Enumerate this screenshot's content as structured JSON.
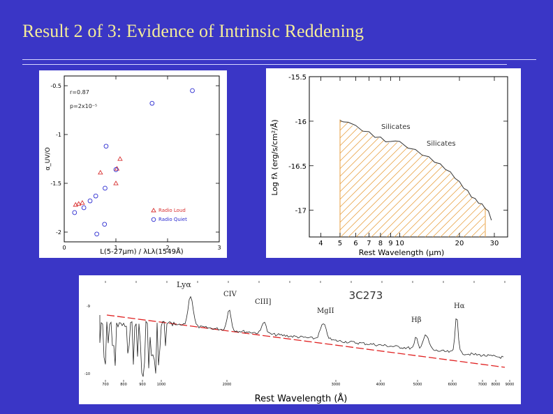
{
  "slide": {
    "title": "Result 2 of 3: Evidence of Intrinsic Reddening"
  },
  "colors": {
    "background": "#3a36c6",
    "title": "#f4ec9a",
    "red": "#d83030",
    "blue": "#2a2ad0",
    "orange": "#e8a040"
  },
  "chart_data": [
    {
      "type": "scatter",
      "title": "",
      "xlabel": "L(5-27μm) / λLλ(1549Å)",
      "ylabel": "α_UV/O",
      "xlim": [
        0,
        3
      ],
      "ylim": [
        -2.1,
        -0.4
      ],
      "xticks": [
        0,
        1,
        2,
        3
      ],
      "xtick_labels": [
        "0",
        "1",
        "2",
        "3"
      ],
      "yticks": [
        -0.5,
        -1,
        -1.5,
        -2
      ],
      "ytick_labels": [
        "-0.5",
        "-1",
        "-1.5",
        "-2"
      ],
      "stats": [
        "r=0.87",
        "p=2x10⁻⁵"
      ],
      "legend_position": "bottom-right",
      "series": [
        {
          "name": "Radio Loud",
          "marker": "triangle",
          "color": "#d83030",
          "x": [
            0.22,
            0.28,
            0.35,
            0.7,
            1.08,
            1.0,
            1.02
          ],
          "y": [
            -1.72,
            -1.71,
            -1.7,
            -1.39,
            -1.25,
            -1.5,
            -1.35
          ]
        },
        {
          "name": "Radio Quiet",
          "marker": "circle",
          "color": "#2a2ad0",
          "x": [
            0.2,
            0.38,
            0.5,
            0.63,
            0.81,
            0.79,
            0.61,
            0.78,
            1.0,
            1.7,
            2.48
          ],
          "y": [
            -1.8,
            -1.75,
            -1.68,
            -2.02,
            -1.12,
            -1.55,
            -1.63,
            -1.92,
            -1.36,
            -0.68,
            -0.55
          ]
        }
      ]
    },
    {
      "type": "line",
      "title": "",
      "xlabel": "Rest Wavelength (μm)",
      "ylabel": "Log fλ (erg/s/cm²/Å)",
      "xscale": "log",
      "xlim": [
        3.5,
        35
      ],
      "ylim": [
        -17.3,
        -15.5
      ],
      "xticks": [
        4,
        5,
        6,
        7,
        8,
        9,
        10,
        20,
        30
      ],
      "xtick_labels": [
        "4",
        "5",
        "6",
        "7",
        "8",
        "9",
        "10",
        "20",
        "30"
      ],
      "yticks": [
        -15.5,
        -16,
        -16.5,
        -17
      ],
      "ytick_labels": [
        "-15.5",
        "-16",
        "-16.5",
        "-17"
      ],
      "annotations": [
        "Silicates",
        "Silicates"
      ],
      "shaded_range": [
        5,
        27
      ],
      "x": [
        5.0,
        5.2,
        5.5,
        6.0,
        6.5,
        7.0,
        7.5,
        8.0,
        8.5,
        9.0,
        9.5,
        10.0,
        11,
        12,
        13,
        14,
        15,
        16,
        17,
        18,
        19,
        20,
        21,
        22,
        23,
        24,
        25,
        26,
        27,
        28,
        29
      ],
      "values": [
        -15.98,
        -16.02,
        -16.0,
        -16.06,
        -16.1,
        -16.13,
        -16.17,
        -16.19,
        -16.22,
        -16.24,
        -16.21,
        -16.24,
        -16.29,
        -16.33,
        -16.37,
        -16.41,
        -16.45,
        -16.49,
        -16.53,
        -16.58,
        -16.63,
        -16.69,
        -16.74,
        -16.79,
        -16.84,
        -16.88,
        -16.91,
        -16.94,
        -16.97,
        -17.02,
        -17.1
      ]
    },
    {
      "type": "line",
      "title": "3C273",
      "xlabel": "Rest Wavelength (Å)",
      "ylabel": "",
      "xlim": [
        650,
        9000
      ],
      "xticks": [
        700,
        800,
        900,
        1000,
        2000,
        3000,
        4000,
        5000,
        6000,
        7000,
        8000,
        9000
      ],
      "xtick_labels": [
        "700",
        "800",
        "900",
        "1000",
        "2000",
        "3000",
        "4000",
        "5000",
        "6000",
        "7000",
        "8000",
        "9000"
      ],
      "yticks": [
        -9,
        -10
      ],
      "ytick_labels": [
        "-9",
        "-10"
      ],
      "line_labels": [
        "Lyα",
        "CIV",
        "CIII]",
        "MgII",
        "Hβ",
        "Hα"
      ],
      "fit_line": "red dashed power-law"
    }
  ]
}
